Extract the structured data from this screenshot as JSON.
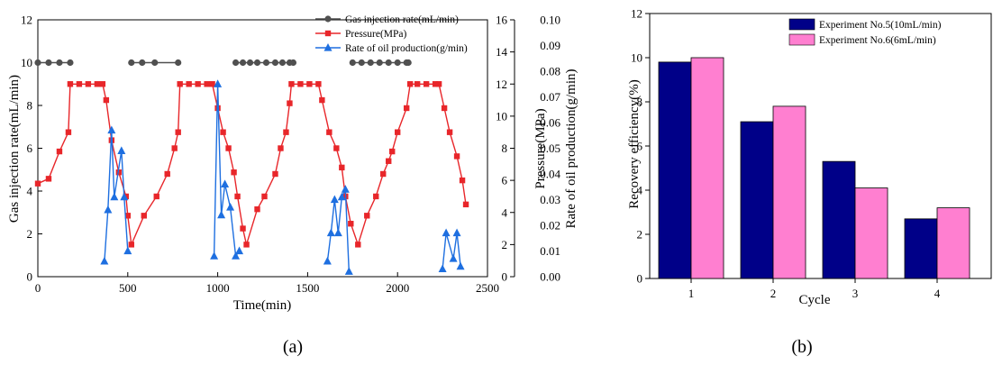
{
  "chart_data": [
    {
      "type": "line",
      "panel_label": "(a)",
      "xlabel": "Time(min)",
      "xlim": [
        0,
        2500
      ],
      "xticks": [
        "0",
        "500",
        "1000",
        "1500",
        "2000",
        "2500"
      ],
      "axes": {
        "left": {
          "label": "Gas injection rate(mL/min)",
          "lim": [
            0,
            12
          ],
          "ticks": [
            "0",
            "2",
            "4",
            "6",
            "8",
            "10",
            "12"
          ]
        },
        "right1": {
          "label": "Pressure(MPa)",
          "lim": [
            0,
            16
          ],
          "ticks": [
            "0",
            "2",
            "4",
            "6",
            "8",
            "10",
            "12",
            "14",
            "16"
          ]
        },
        "right2": {
          "label": "Rate of oil production(g/min)",
          "lim": [
            0,
            0.1
          ],
          "ticks": [
            "0.00",
            "0.01",
            "0.02",
            "0.03",
            "0.04",
            "0.05",
            "0.06",
            "0.07",
            "0.08",
            "0.09",
            "0.10"
          ]
        }
      },
      "series": [
        {
          "name": "Gas injection rate(mL/min)",
          "axis": "left",
          "marker": "circle",
          "color": "#505050",
          "segments": [
            [
              [
                0,
                10
              ],
              [
                60,
                10
              ],
              [
                120,
                10
              ],
              [
                180,
                10
              ]
            ],
            [
              [
                520,
                10
              ],
              [
                580,
                10
              ],
              [
                650,
                10
              ],
              [
                780,
                10
              ]
            ],
            [
              [
                1100,
                10
              ],
              [
                1140,
                10
              ],
              [
                1180,
                10
              ],
              [
                1220,
                10
              ],
              [
                1270,
                10
              ],
              [
                1320,
                10
              ],
              [
                1360,
                10
              ],
              [
                1400,
                10
              ],
              [
                1420,
                10
              ]
            ],
            [
              [
                1750,
                10
              ],
              [
                1800,
                10
              ],
              [
                1850,
                10
              ],
              [
                1900,
                10
              ],
              [
                1950,
                10
              ],
              [
                2000,
                10
              ],
              [
                2050,
                10
              ],
              [
                2060,
                10
              ]
            ]
          ]
        },
        {
          "name": "Pressure(MPa)",
          "axis": "right1",
          "marker": "square",
          "color": "#e8262a",
          "x": [
            0,
            60,
            120,
            170,
            180,
            230,
            280,
            330,
            360,
            380,
            410,
            450,
            490,
            500,
            520,
            590,
            660,
            720,
            760,
            780,
            790,
            840,
            890,
            940,
            970,
            1000,
            1030,
            1060,
            1090,
            1110,
            1140,
            1160,
            1220,
            1260,
            1320,
            1350,
            1380,
            1400,
            1410,
            1460,
            1510,
            1560,
            1580,
            1620,
            1660,
            1690,
            1710,
            1740,
            1780,
            1830,
            1880,
            1920,
            1950,
            1970,
            2000,
            2050,
            2070,
            2110,
            2160,
            2210,
            2230,
            2260,
            2290,
            2330,
            2360,
            2380
          ],
          "y": [
            5.8,
            6.1,
            7.8,
            9.0,
            12.0,
            12.0,
            12.0,
            12.0,
            12.0,
            11.0,
            8.5,
            6.5,
            5.0,
            3.8,
            2.0,
            3.8,
            5.0,
            6.4,
            8.0,
            9.0,
            12.0,
            12.0,
            12.0,
            12.0,
            12.0,
            10.5,
            9.0,
            8.0,
            6.5,
            5.0,
            3.0,
            2.0,
            4.2,
            5.0,
            6.4,
            8.0,
            9.0,
            10.8,
            12.0,
            12.0,
            12.0,
            12.0,
            11.0,
            9.0,
            8.0,
            6.8,
            5.0,
            3.3,
            2.0,
            3.8,
            5.0,
            6.4,
            7.2,
            7.8,
            9.0,
            10.5,
            12.0,
            12.0,
            12.0,
            12.0,
            12.0,
            10.5,
            9.0,
            7.5,
            6.0,
            4.5
          ]
        },
        {
          "name": "Rate of oil production(g/min)",
          "axis": "right2",
          "marker": "triangle",
          "color": "#1e6fe0",
          "segments": [
            [
              [
                370,
                0.006
              ],
              [
                390,
                0.026
              ],
              [
                410,
                0.057
              ],
              [
                425,
                0.031
              ],
              [
                465,
                0.049
              ],
              [
                480,
                0.031
              ],
              [
                500,
                0.01
              ]
            ],
            [
              [
                980,
                0.008
              ],
              [
                1000,
                0.075
              ],
              [
                1020,
                0.024
              ],
              [
                1040,
                0.036
              ],
              [
                1070,
                0.027
              ],
              [
                1100,
                0.008
              ],
              [
                1120,
                0.01
              ]
            ],
            [
              [
                1610,
                0.006
              ],
              [
                1630,
                0.017
              ],
              [
                1650,
                0.03
              ],
              [
                1670,
                0.017
              ],
              [
                1690,
                0.031
              ],
              [
                1710,
                0.034
              ],
              [
                1730,
                0.002
              ]
            ],
            [
              [
                2250,
                0.003
              ],
              [
                2270,
                0.017
              ],
              [
                2310,
                0.007
              ],
              [
                2330,
                0.017
              ],
              [
                2350,
                0.004
              ]
            ]
          ]
        }
      ]
    },
    {
      "type": "bar",
      "panel_label": "(b)",
      "xlabel": "Cycle",
      "ylabel": "Recovery efficiency(%)",
      "ylim": [
        0,
        12
      ],
      "yticks": [
        "0",
        "2",
        "4",
        "6",
        "8",
        "10",
        "12"
      ],
      "categories": [
        "1",
        "2",
        "3",
        "4"
      ],
      "series": [
        {
          "name": "Experiment No.5(10mL/min)",
          "color": "#000088",
          "values": [
            9.8,
            7.1,
            5.3,
            2.7
          ]
        },
        {
          "name": "Experiment No.6(6mL/min)",
          "color": "#ff7fd0",
          "values": [
            10.0,
            7.8,
            4.1,
            3.2
          ]
        }
      ]
    }
  ]
}
